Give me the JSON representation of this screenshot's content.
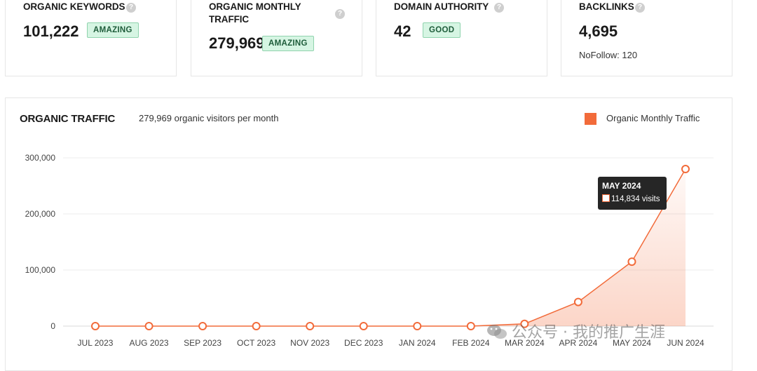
{
  "cards": [
    {
      "title_lines": [
        "ORGANIC KEYWORDS"
      ],
      "value": "101,222",
      "badge": "AMAZING",
      "sub": ""
    },
    {
      "title_lines": [
        "ORGANIC MONTHLY",
        "TRAFFIC"
      ],
      "value": "279,969",
      "badge": "AMAZING",
      "sub": ""
    },
    {
      "title_lines": [
        "DOMAIN AUTHORITY"
      ],
      "value": "42",
      "badge": "GOOD",
      "sub": ""
    },
    {
      "title_lines": [
        "BACKLINKS"
      ],
      "value": "4,695",
      "badge": "",
      "sub": "NoFollow: 120"
    }
  ],
  "help_glyph": "?",
  "colors": {
    "accent": "#f26b3a",
    "badge_bg": "#d6f5e3",
    "badge_border": "#8fd3ad",
    "tooltip_bg": "#262626"
  },
  "tooltip": {
    "title": "MAY 2024",
    "value": "114,834 visits"
  },
  "watermark": "公众号 · 我的推广生涯",
  "chart_data": {
    "type": "area",
    "title": "ORGANIC TRAFFIC",
    "subtitle": "279,969 organic visitors per month",
    "categories": [
      "JUL 2023",
      "AUG 2023",
      "SEP 2023",
      "OCT 2023",
      "NOV 2023",
      "DEC 2023",
      "JAN 2024",
      "FEB 2024",
      "MAR 2024",
      "APR 2024",
      "MAY 2024",
      "JUN 2024"
    ],
    "series": [
      {
        "name": "Organic Monthly Traffic",
        "values": [
          0,
          0,
          0,
          0,
          0,
          0,
          0,
          0,
          4000,
          43000,
          114834,
          279969
        ]
      }
    ],
    "ylim": [
      0,
      300000
    ],
    "yticks": [
      0,
      100000,
      200000,
      300000
    ],
    "ytick_labels": [
      "0",
      "100,000",
      "200,000",
      "300,000"
    ],
    "grid": true,
    "legend": "top-right",
    "xlabel": "",
    "ylabel": ""
  }
}
